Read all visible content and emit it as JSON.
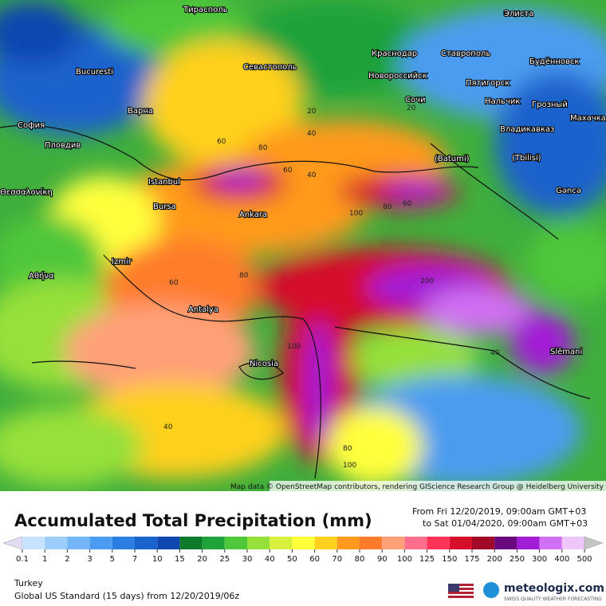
{
  "header": {
    "title": "Accumulated Total Precipitation (mm)",
    "from": "From Fri 12/20/2019, 09:00am GMT+03",
    "to": "to Sat 01/04/2020, 09:00am GMT+03"
  },
  "map": {
    "attribution": "Map data © OpenStreetMap contributors, rendering GIScience Research Group @ Heidelberg University",
    "cities": [
      "Тирасполь",
      "Bucuresti",
      "Варна",
      "София",
      "Пловдив",
      "Севастополь",
      "Istanbul",
      "Bursa",
      "Ankara",
      "Izmir",
      "Αθήνα",
      "Antalya",
      "Nicosia",
      "Краснодар",
      "Новороссийск",
      "Ставрополь",
      "Сочи",
      "Пятигорск",
      "Нальчик",
      "Грозный",
      "Владикавказ",
      "Махачкала",
      "Будённовск",
      "Элиста",
      "(Tbilisi)",
      "(Batumi)",
      "Gəncə",
      "Slêmani",
      "Θεσσαλονίκη"
    ],
    "contour_labels": [
      "60",
      "80",
      "40",
      "60",
      "100",
      "80",
      "60",
      "40",
      "20",
      "200",
      "80",
      "100",
      "60",
      "40",
      "100",
      "40",
      "80",
      "20"
    ]
  },
  "legend": {
    "ticks": [
      0.1,
      1,
      2,
      3,
      5,
      7,
      10,
      15,
      20,
      25,
      30,
      40,
      50,
      60,
      70,
      80,
      90,
      100,
      125,
      150,
      175,
      200,
      250,
      300,
      400,
      500
    ],
    "colors": [
      "#c6e3ff",
      "#9dcdfb",
      "#73b5f5",
      "#4b9cf0",
      "#2b7fe3",
      "#1a62cc",
      "#0f46b0",
      "#0e7a2c",
      "#1fa23a",
      "#4fc73a",
      "#96e03a",
      "#d9f03c",
      "#ffff3c",
      "#ffd01e",
      "#ff9a1e",
      "#ff7b2b",
      "#ffa078",
      "#ff6f8d",
      "#ff3457",
      "#d6102a",
      "#a00a28",
      "#6a0880",
      "#a21ed6",
      "#d070f2",
      "#efc6fa"
    ],
    "below_color": "#e3dcf5",
    "above_color": "#c4c4c4"
  },
  "footer": {
    "region": "Turkey",
    "model": "Global US Standard (15 days)  from  12/20/2019/06z",
    "brand": "meteologix.com",
    "tagline": "SWISS QUALITY WEATHER FORECASTING"
  }
}
